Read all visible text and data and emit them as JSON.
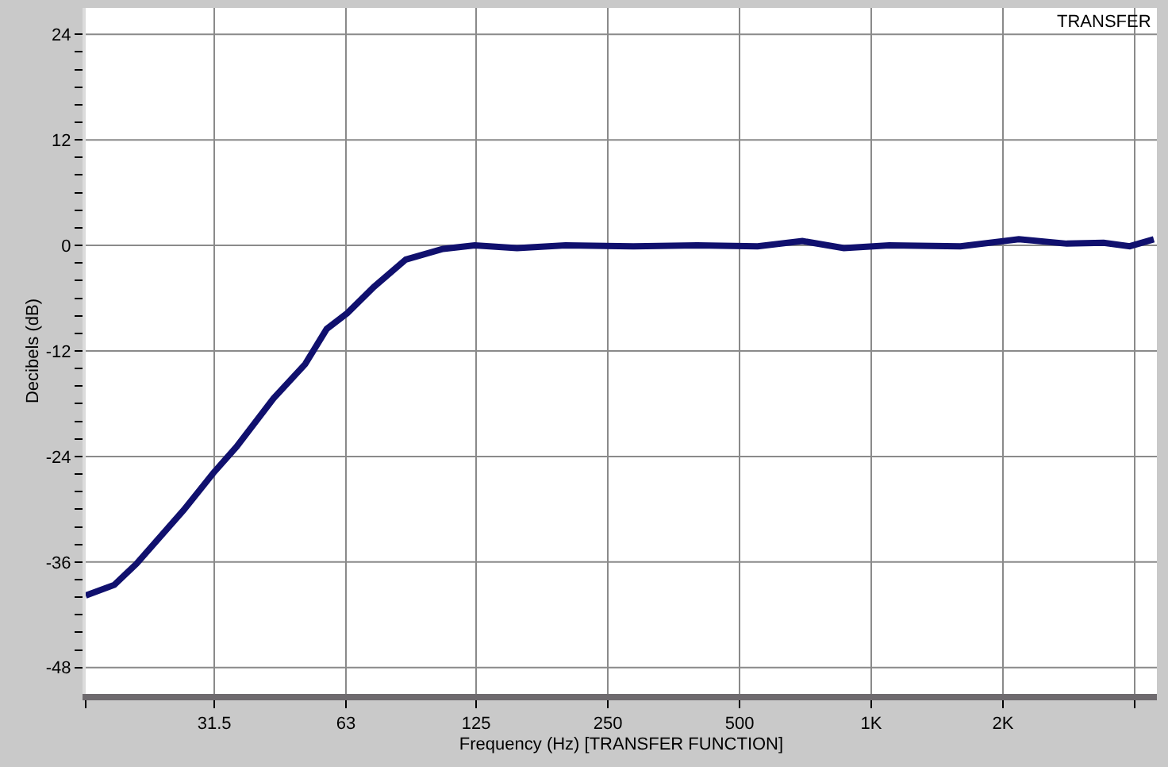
{
  "chart_data": {
    "type": "line",
    "title": "TRANSFER",
    "xlabel": "Frequency (Hz) [TRANSFER FUNCTION]",
    "ylabel": "Decibels (dB)",
    "log": "x",
    "grid": true,
    "marker": "none",
    "line_style": "solid",
    "xlim": [
      16,
      4500
    ],
    "xticks": [
      {
        "value": 16,
        "label": null
      },
      31.5,
      63,
      125,
      250,
      500,
      {
        "value": 1000,
        "label": "1K"
      },
      {
        "value": 2000,
        "label": "2K"
      },
      {
        "value": 4000,
        "label": null
      }
    ],
    "ylim": [
      -51,
      27
    ],
    "yticks": [
      -48,
      {
        "value": -46,
        "label": null
      },
      {
        "value": -44,
        "label": null
      },
      {
        "value": -42,
        "label": null
      },
      {
        "value": -40,
        "label": null
      },
      {
        "value": -38,
        "label": null
      },
      -36,
      {
        "value": -34,
        "label": null
      },
      {
        "value": -32,
        "label": null
      },
      {
        "value": -30,
        "label": null
      },
      {
        "value": -28,
        "label": null
      },
      {
        "value": -26,
        "label": null
      },
      -24,
      {
        "value": -22,
        "label": null
      },
      {
        "value": -20,
        "label": null
      },
      {
        "value": -18,
        "label": null
      },
      {
        "value": -16,
        "label": null
      },
      {
        "value": -14,
        "label": null
      },
      -12,
      {
        "value": -10,
        "label": null
      },
      {
        "value": -8,
        "label": null
      },
      {
        "value": -6,
        "label": null
      },
      {
        "value": -4,
        "label": null
      },
      {
        "value": -2,
        "label": null
      },
      0,
      {
        "value": 2,
        "label": null
      },
      {
        "value": 4,
        "label": null
      },
      {
        "value": 6,
        "label": null
      },
      {
        "value": 8,
        "label": null
      },
      {
        "value": 10,
        "label": null
      },
      12,
      {
        "value": 14,
        "label": null
      },
      {
        "value": 16,
        "label": null
      },
      {
        "value": 18,
        "label": null
      },
      {
        "value": 20,
        "label": null
      },
      {
        "value": 22,
        "label": null
      },
      24
    ],
    "series": [
      {
        "color": "#10106e",
        "x": [
          16,
          18.6,
          20.9,
          26.8,
          31.3,
          35.4,
          43,
          50.8,
          56.9,
          63.4,
          73,
          86.3,
          105,
          124,
          155,
          200,
          286,
          400,
          550,
          696,
          866,
          1100,
          1600,
          2175,
          2800,
          3400,
          3900,
          4427
        ],
        "values": [
          -39.8,
          -38.6,
          -36.2,
          -30.1,
          -25.9,
          -22.9,
          -17.4,
          -13.5,
          -9.5,
          -7.7,
          -4.7,
          -1.6,
          -0.4,
          0,
          -0.3,
          0,
          -0.1,
          0,
          -0.1,
          0.5,
          -0.3,
          0,
          -0.1,
          0.7,
          0.2,
          0.3,
          -0.1,
          0.7
        ]
      }
    ]
  }
}
